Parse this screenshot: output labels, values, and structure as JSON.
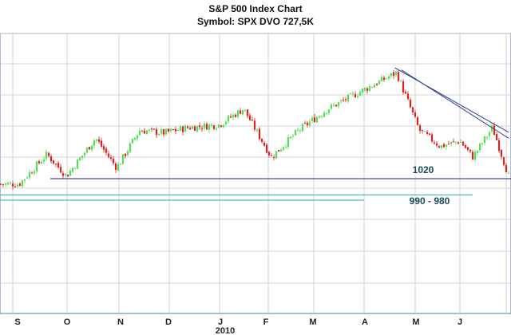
{
  "chart_data": {
    "type": "candlestick",
    "title": "S&P 500 Index Chart",
    "subtitle": "Symbol:  SPX  DVO 727,5K",
    "x_ticks": [
      "S",
      "O",
      "N",
      "D",
      "J",
      "F",
      "M",
      "A",
      "M",
      "J"
    ],
    "year_label": "2010",
    "grid": true,
    "colors": {
      "up": "#55dd55",
      "down": "#dd2222",
      "frame": "#5577bb",
      "support": "#1a1a80",
      "zone": "#2aa8a0",
      "trend": "#2b3a96",
      "label": "#1a4a5a"
    },
    "price_points": [
      {
        "d": "2009-09-03",
        "v": 1010
      },
      {
        "d": "2009-09-20",
        "v": 1065
      },
      {
        "d": "2009-10-02",
        "v": 1025
      },
      {
        "d": "2009-10-20",
        "v": 1095
      },
      {
        "d": "2009-11-02",
        "v": 1040
      },
      {
        "d": "2009-11-16",
        "v": 1110
      },
      {
        "d": "2009-12-01",
        "v": 1105
      },
      {
        "d": "2009-12-16",
        "v": 1115
      },
      {
        "d": "2010-01-04",
        "v": 1120
      },
      {
        "d": "2010-01-19",
        "v": 1150
      },
      {
        "d": "2010-02-05",
        "v": 1060
      },
      {
        "d": "2010-02-22",
        "v": 1110
      },
      {
        "d": "2010-03-12",
        "v": 1150
      },
      {
        "d": "2010-04-06",
        "v": 1190
      },
      {
        "d": "2010-04-23",
        "v": 1217
      },
      {
        "d": "2010-05-07",
        "v": 1110
      },
      {
        "d": "2010-05-20",
        "v": 1080
      },
      {
        "d": "2010-06-01",
        "v": 1090
      },
      {
        "d": "2010-06-09",
        "v": 1060
      },
      {
        "d": "2010-06-21",
        "v": 1115
      },
      {
        "d": "2010-07-01",
        "v": 1025
      }
    ],
    "support_levels": [
      {
        "label": "1020",
        "value": 1020
      },
      {
        "label": "990 - 980",
        "values": [
          990,
          980
        ]
      }
    ],
    "trendlines": [
      {
        "from": {
          "d": "2010-04-26",
          "v": 1222
        },
        "to": {
          "d": "2010-07-01",
          "v": 1095
        }
      },
      {
        "from": {
          "d": "2010-04-22",
          "v": 1226
        },
        "to": {
          "d": "2010-07-01",
          "v": 1106
        }
      }
    ]
  }
}
